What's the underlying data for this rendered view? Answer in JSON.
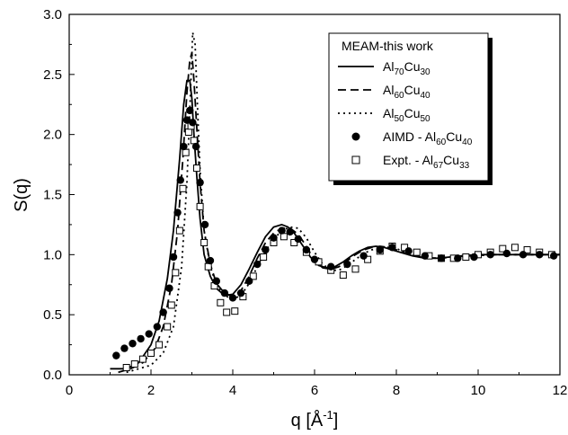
{
  "chart_data": {
    "type": "line",
    "title": "",
    "xlabel": {
      "main": "q [Å",
      "sup": "-1",
      "end": "]"
    },
    "ylabel": "S(q)",
    "xlim": [
      0,
      12
    ],
    "ylim": [
      0,
      3.0
    ],
    "xticks": [
      "0",
      "2",
      "4",
      "6",
      "8",
      "10",
      "12"
    ],
    "yticks": [
      "0.0",
      "0.5",
      "1.0",
      "1.5",
      "2.0",
      "2.5",
      "3.0"
    ],
    "grid": false,
    "legend": {
      "placement": "top-right",
      "title": "MEAM-this work",
      "entries": [
        {
          "marker": "solid-line",
          "parts": [
            [
              "Al",
              ""
            ],
            [
              "70",
              "sub"
            ],
            [
              "Cu",
              ""
            ],
            [
              "30",
              "sub"
            ]
          ]
        },
        {
          "marker": "dashed-line",
          "parts": [
            [
              "Al",
              ""
            ],
            [
              "60",
              "sub"
            ],
            [
              "Cu",
              ""
            ],
            [
              "40",
              "sub"
            ]
          ]
        },
        {
          "marker": "dotted-line",
          "parts": [
            [
              "Al",
              ""
            ],
            [
              "50",
              "sub"
            ],
            [
              "Cu",
              ""
            ],
            [
              "50",
              "sub"
            ]
          ]
        },
        {
          "marker": "filled-circle",
          "parts": [
            [
              "AIMD - Al",
              ""
            ],
            [
              "60",
              "sub"
            ],
            [
              "Cu",
              ""
            ],
            [
              "40",
              "sub"
            ]
          ]
        },
        {
          "marker": "open-square",
          "parts": [
            [
              "Expt. - Al",
              ""
            ],
            [
              "67",
              "sub"
            ],
            [
              "Cu",
              ""
            ],
            [
              "33",
              "sub"
            ]
          ]
        }
      ]
    },
    "series": [
      {
        "style": "solid",
        "x": [
          1.0,
          1.4,
          1.7,
          2.0,
          2.2,
          2.4,
          2.55,
          2.7,
          2.8,
          2.88,
          2.95,
          3.0,
          3.05,
          3.12,
          3.2,
          3.3,
          3.45,
          3.6,
          3.8,
          4.0,
          4.2,
          4.4,
          4.6,
          4.8,
          5.0,
          5.2,
          5.35,
          5.5,
          5.7,
          5.9,
          6.1,
          6.3,
          6.5,
          6.7,
          6.9,
          7.1,
          7.3,
          7.5,
          7.7,
          7.9,
          8.1,
          8.4,
          8.7,
          9.0,
          9.3,
          9.6,
          10.0,
          10.5,
          11.0,
          11.5,
          12.0
        ],
        "y": [
          0.05,
          0.05,
          0.1,
          0.25,
          0.45,
          0.8,
          1.2,
          1.8,
          2.25,
          2.45,
          2.45,
          2.3,
          2.0,
          1.65,
          1.3,
          1.0,
          0.82,
          0.72,
          0.66,
          0.67,
          0.75,
          0.88,
          1.02,
          1.15,
          1.23,
          1.25,
          1.23,
          1.18,
          1.08,
          0.98,
          0.91,
          0.89,
          0.9,
          0.94,
          0.99,
          1.03,
          1.06,
          1.07,
          1.06,
          1.04,
          1.02,
          0.99,
          0.97,
          0.97,
          0.98,
          0.99,
          1.0,
          1.0,
          1.0,
          1.0,
          1.0
        ]
      },
      {
        "style": "dashed",
        "x": [
          1.2,
          1.5,
          1.8,
          2.1,
          2.3,
          2.5,
          2.65,
          2.78,
          2.88,
          2.95,
          3.0,
          3.05,
          3.12,
          3.2,
          3.3,
          3.45,
          3.6,
          3.8,
          4.0,
          4.2,
          4.4,
          4.6,
          4.8,
          5.0,
          5.2,
          5.4,
          5.6,
          5.8,
          6.0,
          6.2,
          6.4,
          6.6,
          6.8,
          7.0,
          7.2,
          7.4,
          7.6,
          7.8,
          8.0,
          8.3,
          8.6,
          9.0,
          9.4,
          9.8,
          10.4,
          11.0,
          11.5,
          12.0
        ],
        "y": [
          0.02,
          0.05,
          0.1,
          0.22,
          0.4,
          0.75,
          1.2,
          1.8,
          2.35,
          2.62,
          2.68,
          2.45,
          2.05,
          1.6,
          1.2,
          0.92,
          0.76,
          0.68,
          0.65,
          0.7,
          0.82,
          0.97,
          1.1,
          1.18,
          1.22,
          1.22,
          1.17,
          1.07,
          0.95,
          0.89,
          0.88,
          0.9,
          0.95,
          1.0,
          1.04,
          1.06,
          1.07,
          1.06,
          1.04,
          1.0,
          0.98,
          0.97,
          0.98,
          0.99,
          1.0,
          1.0,
          1.0,
          1.0
        ]
      },
      {
        "style": "dotted",
        "x": [
          1.4,
          1.7,
          2.0,
          2.3,
          2.55,
          2.75,
          2.88,
          2.96,
          3.02,
          3.08,
          3.14,
          3.2,
          3.3,
          3.45,
          3.6,
          3.8,
          4.0,
          4.2,
          4.4,
          4.6,
          4.8,
          5.0,
          5.2,
          5.4,
          5.6,
          5.8,
          6.0,
          6.2,
          6.4,
          6.6,
          6.8,
          7.0,
          7.2,
          7.4,
          7.6,
          7.8,
          8.0,
          8.3,
          8.6,
          9.0,
          9.4,
          9.8,
          10.4,
          11.0,
          11.5,
          12.0
        ],
        "y": [
          0.02,
          0.05,
          0.08,
          0.18,
          0.4,
          0.9,
          1.6,
          2.3,
          2.85,
          2.75,
          2.2,
          1.7,
          1.2,
          0.9,
          0.75,
          0.66,
          0.63,
          0.66,
          0.76,
          0.9,
          1.03,
          1.13,
          1.2,
          1.23,
          1.22,
          1.14,
          1.02,
          0.92,
          0.87,
          0.87,
          0.91,
          0.96,
          1.01,
          1.04,
          1.06,
          1.06,
          1.05,
          1.01,
          0.98,
          0.97,
          0.98,
          0.99,
          1.0,
          1.0,
          1.0,
          1.0
        ]
      }
    ],
    "aimd": {
      "x": [
        1.15,
        1.35,
        1.55,
        1.75,
        1.95,
        2.15,
        2.3,
        2.45,
        2.55,
        2.65,
        2.72,
        2.8,
        2.88,
        2.95,
        3.02,
        3.1,
        3.2,
        3.32,
        3.45,
        3.6,
        3.8,
        4.0,
        4.2,
        4.4,
        4.6,
        4.8,
        5.0,
        5.2,
        5.4,
        5.6,
        5.8,
        6.0,
        6.4,
        6.8,
        7.2,
        7.6,
        7.9,
        8.3,
        8.7,
        9.1,
        9.5,
        9.9,
        10.3,
        10.7,
        11.1,
        11.5,
        11.85
      ],
      "y": [
        0.16,
        0.22,
        0.26,
        0.3,
        0.34,
        0.4,
        0.52,
        0.72,
        0.98,
        1.35,
        1.62,
        1.9,
        2.12,
        2.2,
        2.1,
        1.9,
        1.6,
        1.25,
        0.95,
        0.78,
        0.68,
        0.64,
        0.68,
        0.78,
        0.92,
        1.04,
        1.14,
        1.2,
        1.19,
        1.13,
        1.04,
        0.96,
        0.9,
        0.92,
        0.99,
        1.04,
        1.06,
        1.03,
        0.99,
        0.97,
        0.97,
        0.98,
        1.0,
        1.01,
        1.0,
        1.0,
        0.99
      ]
    },
    "expt": {
      "x": [
        1.4,
        1.6,
        1.8,
        2.0,
        2.2,
        2.4,
        2.5,
        2.6,
        2.7,
        2.78,
        2.85,
        2.92,
        2.98,
        3.05,
        3.12,
        3.2,
        3.3,
        3.4,
        3.55,
        3.7,
        3.85,
        4.05,
        4.25,
        4.5,
        4.75,
        5.0,
        5.25,
        5.5,
        5.8,
        6.1,
        6.4,
        6.7,
        7.0,
        7.3,
        7.6,
        7.9,
        8.2,
        8.5,
        8.8,
        9.1,
        9.4,
        9.7,
        10.0,
        10.3,
        10.6,
        10.9,
        11.2,
        11.5,
        11.8
      ],
      "y": [
        0.06,
        0.09,
        0.13,
        0.18,
        0.25,
        0.4,
        0.58,
        0.85,
        1.2,
        1.55,
        1.85,
        2.02,
        2.07,
        1.95,
        1.72,
        1.4,
        1.1,
        0.9,
        0.74,
        0.6,
        0.52,
        0.53,
        0.65,
        0.82,
        0.98,
        1.1,
        1.15,
        1.1,
        1.02,
        0.94,
        0.87,
        0.83,
        0.88,
        0.96,
        1.03,
        1.07,
        1.06,
        1.02,
        0.99,
        0.97,
        0.97,
        0.98,
        1.0,
        1.02,
        1.05,
        1.06,
        1.04,
        1.02,
        1.0
      ]
    }
  }
}
